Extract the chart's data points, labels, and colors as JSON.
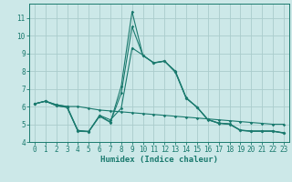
{
  "xlabel": "Humidex (Indice chaleur)",
  "bg_color": "#cce8e8",
  "grid_color": "#aacccc",
  "line_color": "#1a7a6e",
  "xlim": [
    -0.5,
    23.5
  ],
  "ylim": [
    4,
    11.8
  ],
  "yticks": [
    4,
    5,
    6,
    7,
    8,
    9,
    10,
    11
  ],
  "xticks": [
    0,
    1,
    2,
    3,
    4,
    5,
    6,
    7,
    8,
    9,
    10,
    11,
    12,
    13,
    14,
    15,
    16,
    17,
    18,
    19,
    20,
    21,
    22,
    23
  ],
  "line1_x": [
    0,
    1,
    2,
    3,
    4,
    5,
    6,
    7,
    8,
    9,
    10,
    11,
    12,
    13,
    14,
    15,
    16,
    17,
    18,
    19,
    20,
    21,
    22,
    23
  ],
  "line1_y": [
    6.15,
    6.3,
    6.1,
    6.0,
    6.0,
    5.9,
    5.8,
    5.75,
    5.7,
    5.65,
    5.6,
    5.55,
    5.5,
    5.45,
    5.4,
    5.35,
    5.3,
    5.25,
    5.2,
    5.15,
    5.1,
    5.05,
    5.0,
    5.0
  ],
  "line2_x": [
    0,
    1,
    2,
    3,
    4,
    5,
    6,
    7,
    8,
    9,
    10,
    11,
    12,
    13,
    14,
    15,
    16,
    17,
    18,
    19,
    20,
    21,
    22,
    23
  ],
  "line2_y": [
    6.15,
    6.3,
    6.1,
    6.0,
    4.65,
    4.6,
    5.5,
    5.25,
    5.9,
    9.3,
    8.9,
    8.45,
    8.55,
    8.0,
    6.5,
    5.95,
    5.25,
    5.05,
    5.0,
    4.65,
    4.6,
    4.6,
    4.6,
    4.5
  ],
  "line3_x": [
    0,
    1,
    2,
    3,
    4,
    5,
    6,
    7,
    8,
    9,
    10,
    11,
    12,
    13,
    14,
    15,
    16,
    17,
    18,
    19,
    20,
    21,
    22,
    23
  ],
  "line3_y": [
    6.15,
    6.3,
    6.05,
    5.95,
    4.6,
    4.58,
    5.45,
    5.1,
    7.15,
    11.35,
    8.87,
    8.47,
    8.57,
    7.95,
    6.47,
    5.97,
    5.27,
    5.07,
    5.02,
    4.67,
    4.62,
    4.62,
    4.62,
    4.52
  ],
  "line4_x": [
    0,
    1,
    2,
    3,
    4,
    5,
    6,
    7,
    8,
    9,
    10,
    11,
    12,
    13,
    14,
    15,
    16,
    17,
    18,
    19,
    20,
    21,
    22,
    23
  ],
  "line4_y": [
    6.15,
    6.3,
    6.05,
    5.95,
    4.62,
    4.59,
    5.47,
    5.13,
    6.75,
    10.5,
    8.88,
    8.46,
    8.56,
    7.93,
    6.46,
    5.96,
    5.26,
    5.06,
    5.01,
    4.66,
    4.61,
    4.61,
    4.61,
    4.51
  ],
  "tick_fontsize": 5.5,
  "label_fontsize": 6.5
}
